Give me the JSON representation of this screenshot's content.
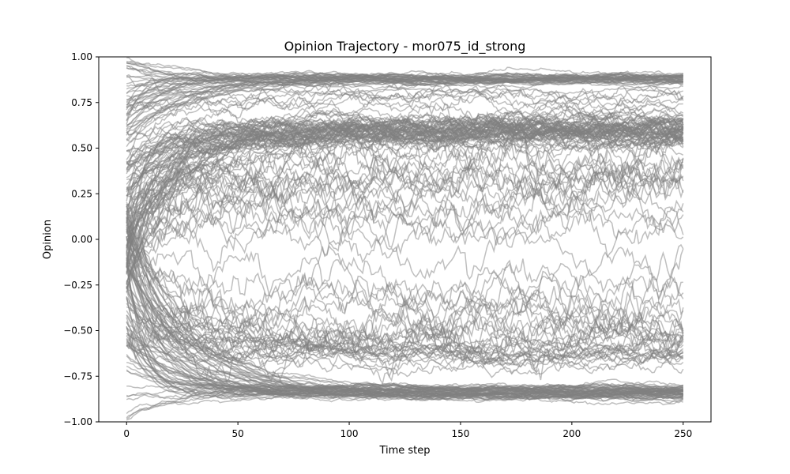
{
  "chart_data": {
    "type": "line",
    "title": "Opinion Trajectory - mor075_id_strong",
    "xlabel": "Time step",
    "ylabel": "Opinion",
    "xlim": [
      -12.5,
      262.5
    ],
    "ylim": [
      -1.0,
      1.0
    ],
    "x_ticks": [
      0,
      50,
      100,
      150,
      200,
      250
    ],
    "y_ticks": [
      -1.0,
      -0.75,
      -0.5,
      -0.25,
      0.0,
      0.25,
      0.5,
      0.75,
      1.0
    ],
    "x_tick_labels": [
      "0",
      "50",
      "100",
      "150",
      "200",
      "250"
    ],
    "y_tick_labels": [
      "−1.00",
      "−0.75",
      "−0.50",
      "−0.25",
      "0.00",
      "0.25",
      "0.50",
      "0.75",
      "1.00"
    ],
    "line_color": "#808080",
    "line_opacity": 0.5,
    "grid": false,
    "time_steps": 251,
    "trajectory_groups": [
      {
        "final_value": 0.88,
        "spread": 0.02,
        "count": 40,
        "start_range": [
          0.5,
          1.0
        ]
      },
      {
        "final_value": 0.78,
        "spread": 0.04,
        "count": 8,
        "start_range": [
          0.3,
          0.9
        ]
      },
      {
        "final_value": 0.6,
        "spread": 0.05,
        "count": 60,
        "start_range": [
          -0.3,
          0.6
        ]
      },
      {
        "final_value": 0.4,
        "spread": 0.1,
        "count": 14,
        "start_range": [
          -0.2,
          0.4
        ]
      },
      {
        "final_value": 0.15,
        "spread": 0.1,
        "count": 8,
        "start_range": [
          -0.2,
          0.3
        ]
      },
      {
        "final_value": -0.5,
        "spread": 0.06,
        "count": 16,
        "start_range": [
          -0.6,
          0.3
        ]
      },
      {
        "final_value": -0.35,
        "spread": 0.05,
        "count": 3,
        "start_range": [
          -0.4,
          0.2
        ]
      },
      {
        "final_value": -0.63,
        "spread": 0.04,
        "count": 14,
        "start_range": [
          -0.8,
          0.2
        ]
      },
      {
        "final_value": -0.84,
        "spread": 0.03,
        "count": 60,
        "start_range": [
          -1.0,
          0.2
        ]
      }
    ]
  }
}
